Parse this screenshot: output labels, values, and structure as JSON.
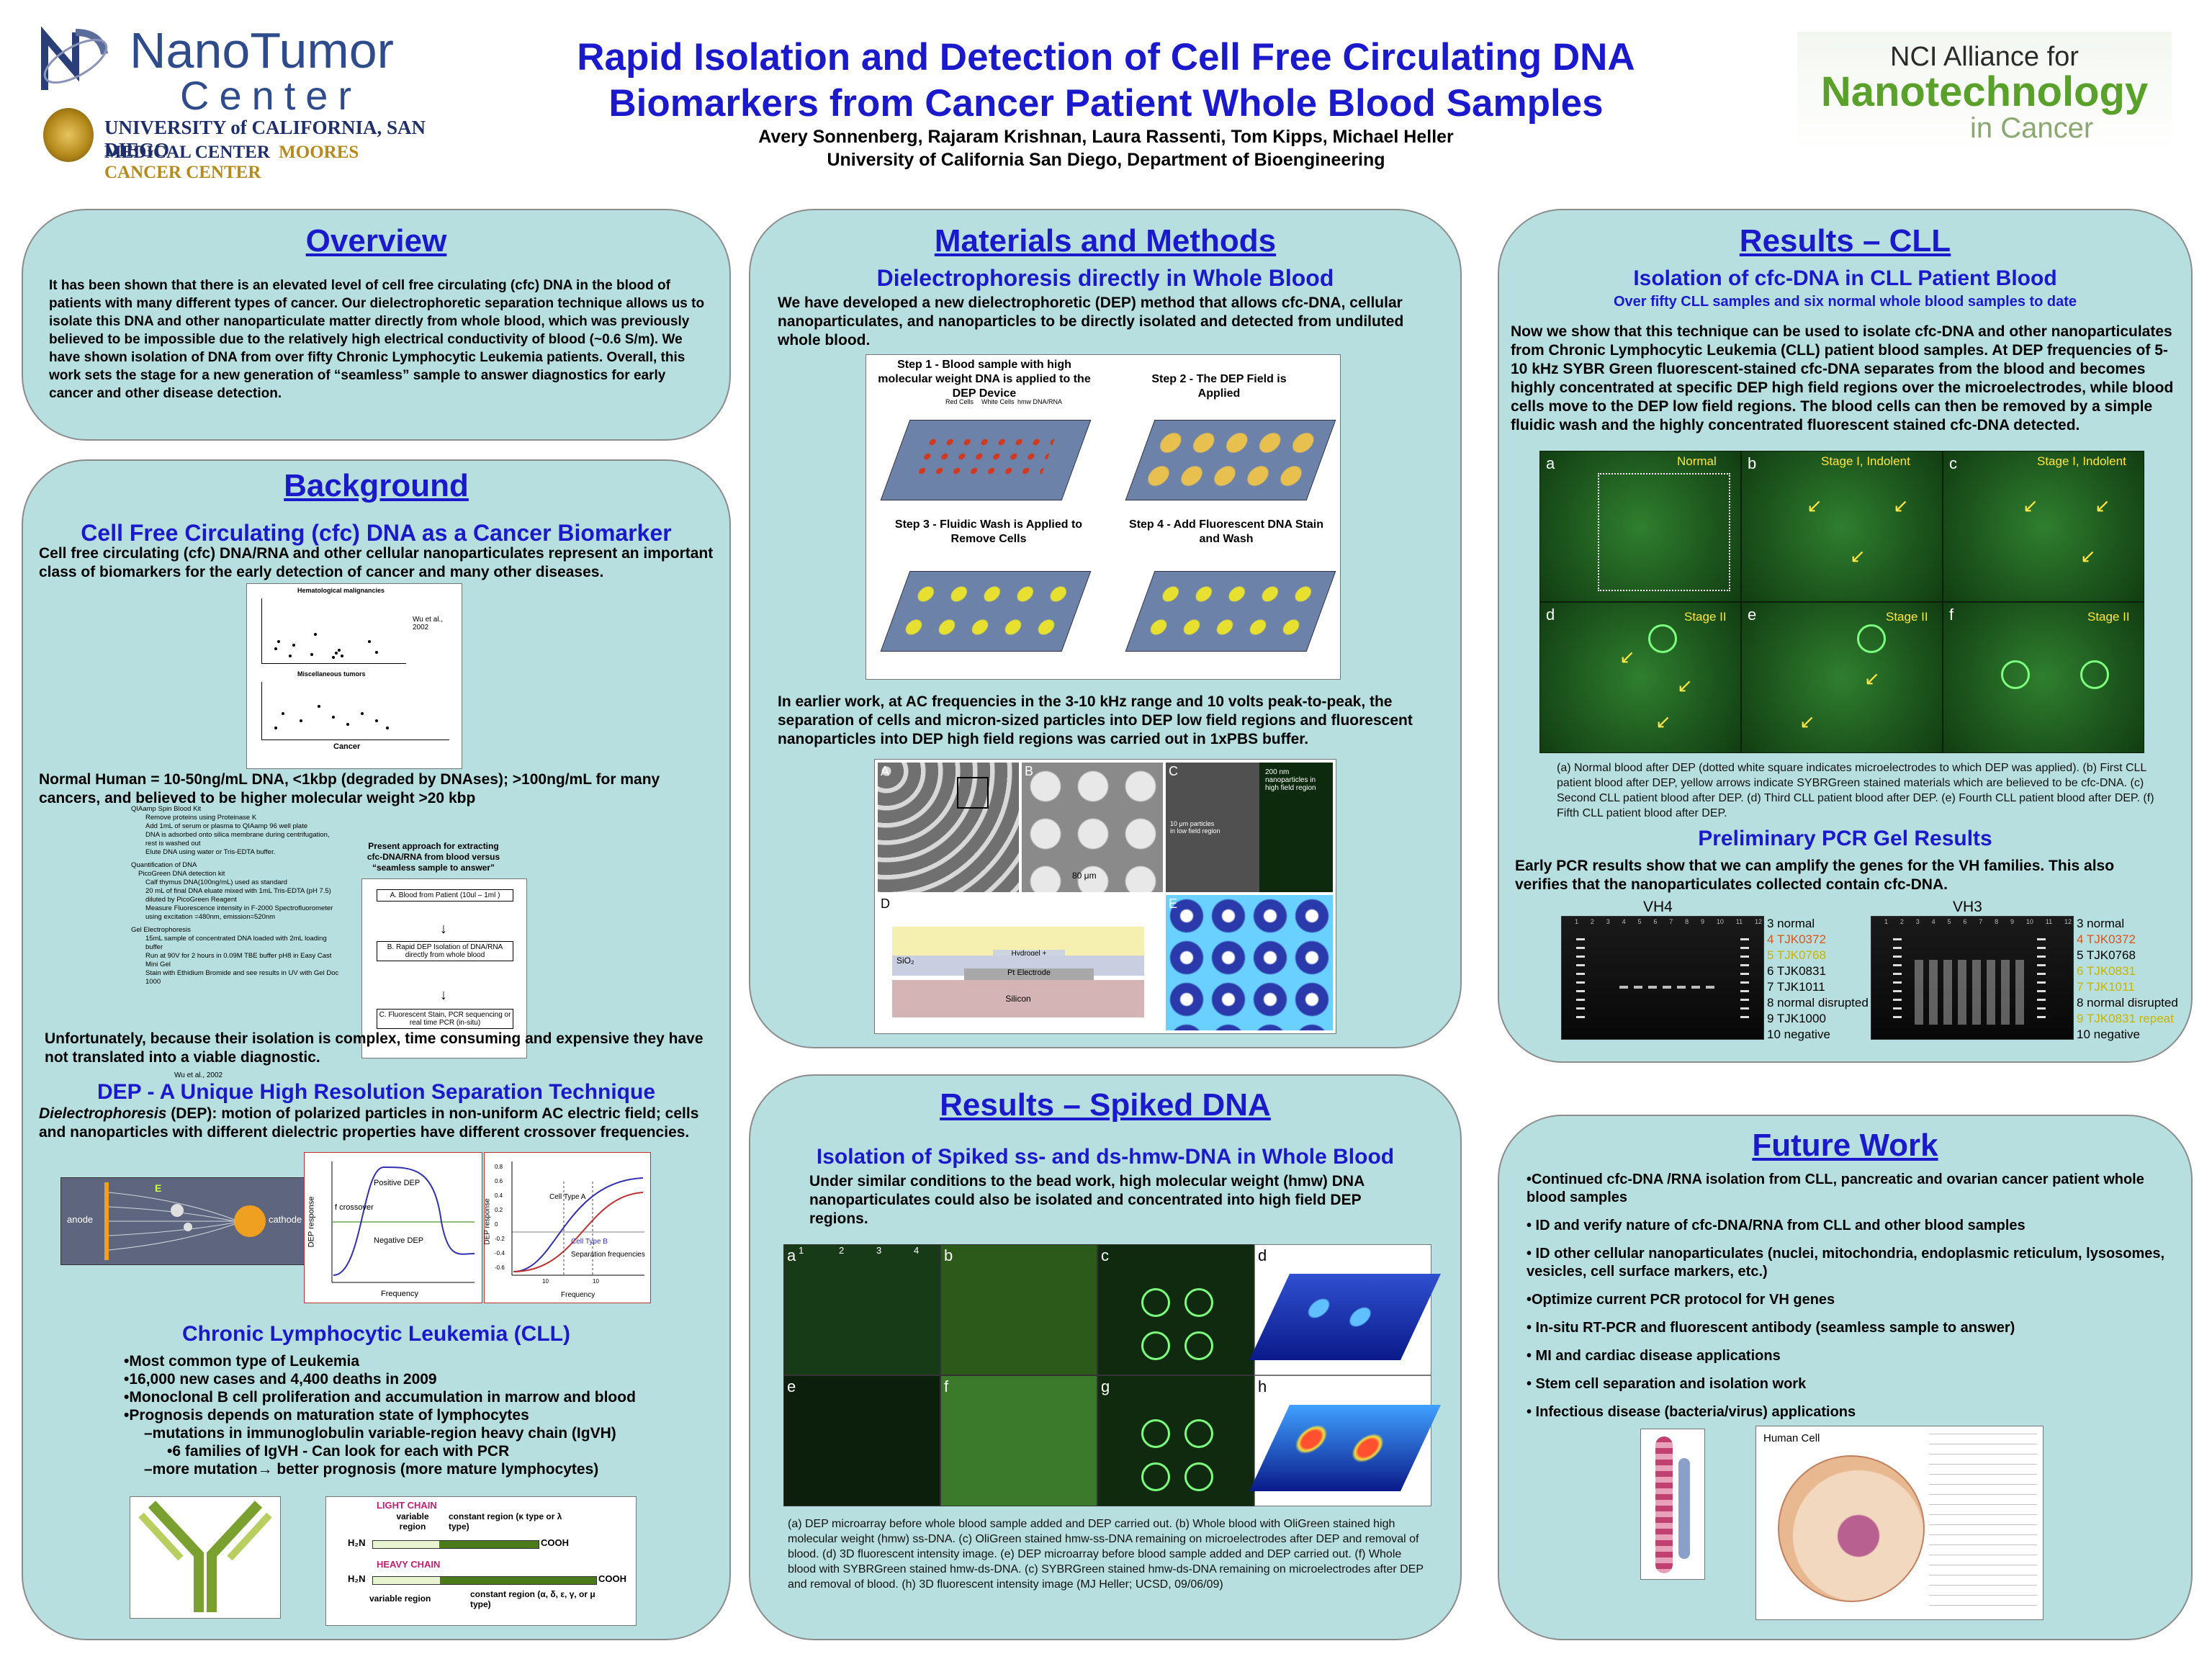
{
  "header": {
    "logo_left_line1": "NanoTumor",
    "logo_left_line2": "Center",
    "logo_left_line3": "UNIVERSITY of CALIFORNIA, SAN DIEGO",
    "logo_left_line4a": "MEDICAL CENTER",
    "logo_left_line4b": "MOORES CANCER CENTER",
    "title_line1": "Rapid Isolation and Detection of Cell Free Circulating DNA",
    "title_line2": "Biomarkers from Cancer Patient Whole Blood Samples",
    "authors": "Avery Sonnenberg, Rajaram Krishnan, Laura Rassenti, Tom Kipps, Michael Heller",
    "affiliation": "University of California San Diego, Department of Bioengineering",
    "logo_right_line1": "NCI Alliance for",
    "logo_right_line2": "Nanotechnology",
    "logo_right_line3": "in Cancer"
  },
  "overview": {
    "title": "Overview",
    "text": "It has been shown that there is an elevated level of cell free circulating (cfc) DNA in the blood of patients with many different types of cancer.  Our dielectrophoretic separation technique allows us to isolate this DNA and other nanoparticulate matter directly from whole blood, which was previously believed to be impossible due to the relatively high electrical conductivity of blood (~0.6 S/m).  We have shown isolation of DNA from over fifty Chronic Lymphocytic Leukemia patients.  Overall, this work sets the stage for a new generation of “seamless” sample to answer diagnostics for early cancer and other disease detection."
  },
  "background": {
    "title": "Background",
    "sub1": "Cell Free Circulating (cfc) DNA as a Cancer Biomarker",
    "text1": "Cell free circulating (cfc) DNA/RNA and other cellular nanoparticulates represent an important class of biomarkers for the early detection of cancer and many other diseases.",
    "fig1_title": "Hematological malignancies",
    "fig1_title2": "Miscellaneous tumors",
    "fig1_cite": "Wu et al., 2002",
    "fig1_xlabel": "Cancer",
    "text2": "Normal Human = 10-50ng/mL DNA, <1kbp (degraded by DNAses); >100ng/mL for many cancers, and believed to be higher molecular weight >20 kbp",
    "protocol_lines": [
      "QIAamp Spin Blood Kit",
      "Remove proteins using Proteinase K",
      "Add 1mL of serum or plasma to QIAamp 96 well plate",
      "DNA is adsorbed onto silica membrane during centrifugation, rest is washed out",
      "Elute DNA using water or Tris-EDTA buffer.",
      "Quantification of DNA",
      "PicoGreen DNA detection kit",
      "Calf thymus DNA(100ng/mL) used as standard",
      "20 mL of final DNA eluate mixed with 1mL Tris-EDTA (pH 7.5) diluted by PicoGreen Reagent",
      "Measure Fluorescence intensity in F-2000 Spectrofluorometer using excitation =480nm, emission=520nm",
      "Gel Electrophoresis",
      "15mL sample of concentrated DNA loaded with 2mL loading buffer",
      "Run at 90V for 2 hours in 0.09M TBE buffer pH8 in Easy Cast Mini Gel",
      "Stain with Ethidium Bromide and see results in UV with Gel Doc 1000"
    ],
    "protocol_cite": "Wu et al., 2002",
    "approach_title": "Present approach for extracting cfc-DNA/RNA from blood versus “seamless sample to answer”",
    "approach_a": "A.  Blood from Patient (10ul – 1ml )",
    "approach_b": "B.  Rapid DEP Isolation of DNA/RNA directly from whole blood",
    "approach_c": "C.  Fluorescent Stain, PCR sequencing or real time PCR (in-situ)",
    "text3": "Unfortunately, because their isolation is complex, time consuming and expensive they have not translated into a viable diagnostic.",
    "sub2": "DEP - A Unique High Resolution Separation Technique",
    "text4_em": "Dielectrophoresis",
    "text4": " (DEP): motion of polarized particles in non-uniform AC electric field; cells and nanoparticles with different dielectric properties have different crossover frequencies.",
    "dep_anode": "anode",
    "dep_cathode": "cathode",
    "dep_e": "E",
    "plot1_pos": "Positive DEP",
    "plot1_cross": "f crossover",
    "plot1_neg": "Negative DEP",
    "plot1_ylabel": "DEP response",
    "plot1_xlabel": "Frequency",
    "plot2_a": "Cell Type A",
    "plot2_b": "Cell Type B",
    "plot2_sep": "Separation frequencies",
    "plot2_ylabel": "DEP response",
    "plot2_xlabel": "Frequency",
    "plot2_ticks_y": [
      "0.8",
      "0.6",
      "0.4",
      "0.2",
      "0",
      "-0.2",
      "-0.4",
      "-0.6"
    ],
    "plot2_ticks_x": [
      "10",
      "10"
    ],
    "sub3": "Chronic Lymphocytic Leukemia (CLL)",
    "cll_items": [
      "•Most common type of Leukemia",
      "•16,000 new cases and 4,400 deaths in 2009",
      "•Monoclonal B cell proliferation and accumulation in marrow and blood",
      "•Prognosis depends on maturation state of lymphocytes",
      "–mutations in immunoglobulin variable-region heavy chain (IgVH)",
      "•6 families of IgVH  - Can look for each with PCR",
      "–more mutation→ better prognosis (more mature lymphocytes)"
    ],
    "chain_light": "LIGHT CHAIN",
    "chain_variable": "variable region",
    "chain_constant": "constant region (κ type or λ type)",
    "chain_heavy": "HEAVY CHAIN",
    "chain_variable2": "variable region",
    "chain_constant2": "constant region (α, δ, ε, γ, or μ type)",
    "chain_h2n": "H₂N",
    "chain_cooh": "COOH"
  },
  "methods": {
    "title": "Materials and Methods",
    "sub": "Dielectrophoresis directly in Whole Blood",
    "text1": "We have developed a new dielectrophoretic (DEP) method that allows cfc-DNA, cellular nanoparticulates, and nanoparticles to be directly isolated and detected from undiluted whole blood.",
    "step1": "Step 1 - Blood sample with high molecular weight DNA is applied to the DEP Device",
    "step2": "Step 2 - The DEP Field is Applied",
    "step3": "Step 3 - Fluidic Wash is Applied to Remove Cells",
    "step4": "Step 4 - Add Fluorescent DNA Stain and Wash",
    "legend_red": "Red Cells",
    "legend_white": "White Cells",
    "legend_dna": "hmw DNA/RNA",
    "text2_a": "In earlier work, at AC frequencies in the 3-10 kHz range and 10 volts peak-to-peak, the separation of cells and micron-sized particles into ",
    "text2_b": "DEP",
    "text2_c": " low field regions and fluorescent nanoparticles into ",
    "text2_d": "DEP",
    "text2_e": " high field regions was carried out in 1xPBS buffer.",
    "fig_labels": [
      "A",
      "B",
      "C",
      "D",
      "E"
    ],
    "fig_c_note": "200 nm nanoparticles in high field region",
    "fig_c_note2": "10 μm particles in low field region",
    "fig_b_scale": "80 μm",
    "fig_d_hydrogel": "Hydrogel + Streptavidin",
    "fig_d_sio2": "SiO₂",
    "fig_d_pt": "Pt Electrode",
    "fig_d_si": "Silicon"
  },
  "spiked": {
    "title": "Results – Spiked DNA",
    "sub": "Isolation of Spiked ss- and ds-hmw-DNA in Whole Blood",
    "text": "Under similar conditions to the bead work, high molecular weight (hmw) DNA nanoparticulates could also be isolated and concentrated into high field DEP regions.",
    "panel_labels": [
      "a",
      "b",
      "c",
      "d",
      "e",
      "f",
      "g",
      "h"
    ],
    "grid_nums": [
      "1",
      "2",
      "3",
      "4"
    ],
    "caption": "(a) DEP microarray before whole blood sample added and DEP carried out. (b) Whole blood with OliGreen stained high molecular weight (hmw) ss-DNA. (c) OliGreen stained hmw-ss-DNA remaining on microelectrodes after DEP and removal of blood. (d) 3D fluorescent intensity image. (e) DEP microarray before blood sample added and DEP carried out. (f) Whole blood with SYBRGreen stained hmw-ds-DNA. (c) SYBRGreen stained hmw-ds-DNA remaining on microelectrodes after DEP and removal of blood. (h) 3D fluorescent intensity image (MJ Heller; UCSD, 09/06/09)"
  },
  "cll": {
    "title": "Results – CLL",
    "sub": "Isolation of cfc-DNA in CLL Patient Blood",
    "sub2": "Over fifty CLL samples and six normal whole blood samples to date",
    "text": "Now we show that this technique can be used to isolate cfc-DNA and other nanoparticulates from Chronic Lymphocytic Leukemia (CLL) patient blood samples. At DEP frequencies of 5-10 kHz SYBR Green fluorescent-stained cfc-DNA separates from the blood and becomes highly concentrated at specific DEP high field regions over the microelectrodes, while blood cells move to the DEP low field regions. The blood cells can then be removed by a simple fluidic wash and the highly concentrated fluorescent stained cfc-DNA detected.",
    "panels": [
      {
        "letter": "a",
        "label": "Normal"
      },
      {
        "letter": "b",
        "label": "Stage I, Indolent"
      },
      {
        "letter": "c",
        "label": "Stage I, Indolent"
      },
      {
        "letter": "d",
        "label": "Stage II"
      },
      {
        "letter": "e",
        "label": "Stage II"
      },
      {
        "letter": "f",
        "label": "Stage II"
      }
    ],
    "caption": "(a) Normal blood after DEP (dotted white square indicates microelectrodes to which DEP was applied). (b) First CLL patient blood after DEP, yellow arrows indicate SYBRGreen stained materials which are believed to be cfc-DNA. (c) Second CLL patient blood after DEP. (d) Third CLL patient blood after DEP. (e) Fourth CLL patient blood after DEP. (f) Fifth CLL patient blood after DEP.",
    "pcr_title": "Preliminary PCR Gel Results",
    "pcr_text": "Early PCR results show that we can amplify the genes for the VH families.  This also verifies that the nanoparticulates collected contain cfc-DNA.",
    "gel1_title": "VH4",
    "gel2_title": "VH3",
    "gel1_rows": [
      {
        "t": "3 normal",
        "c": "#000000"
      },
      {
        "t": "4 TJK0372",
        "c": "#d9541c"
      },
      {
        "t": "5 TJK0768",
        "c": "#c8b400"
      },
      {
        "t": "6 TJK0831",
        "c": "#000000"
      },
      {
        "t": "7 TJK1011",
        "c": "#000000"
      },
      {
        "t": "8 normal disrupted",
        "c": "#000000"
      },
      {
        "t": "9 TJK1000",
        "c": "#000000"
      },
      {
        "t": "10 negative",
        "c": "#000000"
      }
    ],
    "gel2_rows": [
      {
        "t": "3 normal",
        "c": "#000000"
      },
      {
        "t": "4 TJK0372",
        "c": "#d9541c"
      },
      {
        "t": "5 TJK0768",
        "c": "#000000"
      },
      {
        "t": "6 TJK0831",
        "c": "#c8b400"
      },
      {
        "t": "7 TJK1011",
        "c": "#c8b400"
      },
      {
        "t": "8 normal disrupted",
        "c": "#000000"
      },
      {
        "t": "9 TJK0831 repeat",
        "c": "#c8b400"
      },
      {
        "t": "10 negative",
        "c": "#000000"
      }
    ],
    "lane_nums": [
      "1",
      "2",
      "3",
      "4",
      "5",
      "6",
      "7",
      "8",
      "9",
      "10",
      "11",
      "12"
    ]
  },
  "future": {
    "title": "Future Work",
    "items": [
      "•Continued  cfc-DNA /RNA isolation from CLL, pancreatic and ovarian cancer patient whole blood samples",
      "• ID and verify nature of cfc-DNA/RNA from CLL and other blood samples",
      "• ID other cellular nanoparticulates (nuclei, mitochondria, endoplasmic reticulum, lysosomes, vesicles, cell surface markers, etc.)",
      "•Optimize current PCR protocol for VH genes",
      "• In-situ RT-PCR and fluorescent antibody (seamless sample to answer)",
      "• MI and cardiac disease applications",
      "• Stem cell separation and isolation work",
      "• Infectious disease (bacteria/virus) applications"
    ],
    "cell_title": "Human Cell"
  }
}
